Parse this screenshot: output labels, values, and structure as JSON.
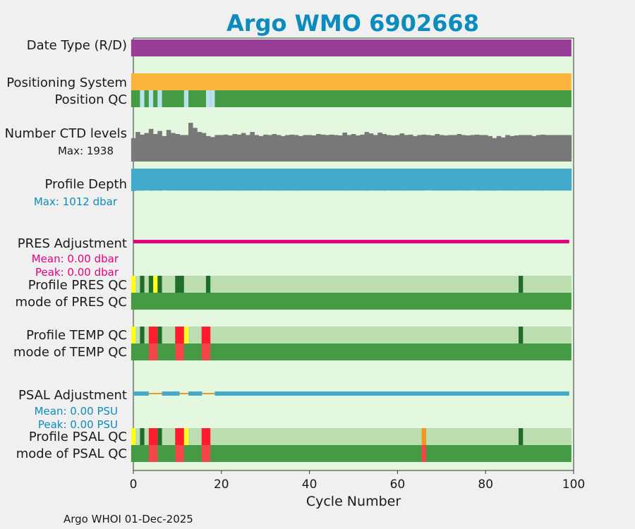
{
  "chart_data": {
    "type": "table",
    "title": "Argo WMO 6902668",
    "xlabel": "Cycle Number",
    "xlim": [
      0,
      100
    ],
    "xticks": [
      0,
      20,
      40,
      60,
      80,
      100
    ],
    "credit": "Argo WHOI 01-Dec-2025",
    "colors": {
      "background": "#e3f8df",
      "title": "#0b8cbd",
      "date_type": "#993d99",
      "positioning": "#fbb33d",
      "qc_good": "#449b44",
      "qc_interp": "#b9e2ef",
      "qc_probably_good": "#1f6d2a",
      "qc_bad": "#ff1a2c",
      "qc_questionable": "#ffff1a",
      "qc_changed": "#f4951f",
      "qc_light": "#bcddaf",
      "mode_bad": "#f4454b",
      "ctd": "#787878",
      "depth": "#44aacc",
      "pres_adj": "#e6007e",
      "psal_adj": "#44aacc",
      "psal_adj_gap": "#f4951f"
    },
    "rows": {
      "date_type": {
        "label": "Date Type (R/D)"
      },
      "positioning": {
        "label": "Positioning System"
      },
      "position_qc": {
        "label": "Position QC",
        "interp_cycles": [
          2,
          4,
          6,
          12,
          17,
          18
        ]
      },
      "ctd": {
        "label": "Number CTD levels",
        "max_text": "Max: 1938",
        "max": 1938,
        "values": [
          1150,
          1450,
          1320,
          1400,
          1600,
          1350,
          1500,
          1250,
          1550,
          1400,
          1350,
          1300,
          1300,
          1900,
          1650,
          1450,
          1400,
          1250,
          1200,
          1300,
          1300,
          1320,
          1280,
          1350,
          1320,
          1400,
          1300,
          1450,
          1300,
          1250,
          1320,
          1300,
          1350,
          1300,
          1250,
          1300,
          1320,
          1300,
          1250,
          1300,
          1300,
          1280,
          1350,
          1320,
          1300,
          1320,
          1300,
          1280,
          1420,
          1300,
          1350,
          1280,
          1320,
          1450,
          1380,
          1300,
          1420,
          1350,
          1300,
          1280,
          1300,
          1380,
          1300,
          1320,
          1250,
          1300,
          1320,
          1300,
          1280,
          1350,
          1300,
          1280,
          1300,
          1300,
          1350,
          1300,
          1280,
          1300,
          1320,
          1300,
          1300,
          1250,
          1150,
          1250,
          1180,
          1300,
          1250,
          1280,
          1300,
          1300,
          1300,
          1250,
          1300,
          1320,
          1300,
          1300,
          1300,
          1300,
          1300,
          1300
        ]
      },
      "profile_depth": {
        "label": "Profile Depth",
        "max_text": "Max: 1012 dbar",
        "max": 1012,
        "values": [
          980,
          960,
          960,
          950,
          960,
          955,
          960,
          950,
          955,
          960,
          958,
          955,
          957,
          960,
          955,
          958,
          960,
          957,
          958,
          960,
          958,
          960,
          957,
          958,
          960,
          958,
          955,
          957,
          958,
          960,
          955,
          957,
          958,
          960,
          958,
          955,
          957,
          960,
          958,
          955,
          957,
          958,
          955,
          960,
          957,
          958,
          955,
          957,
          958,
          960,
          955,
          957,
          958,
          960,
          955,
          957,
          958,
          960,
          955,
          957,
          958,
          960,
          958,
          955,
          957,
          958,
          955,
          950,
          957,
          958,
          955,
          957,
          960,
          958,
          955,
          957,
          958,
          950,
          958,
          960,
          957,
          958,
          960,
          955,
          957,
          958,
          955,
          960,
          957,
          958,
          955,
          957,
          958,
          960,
          955,
          957,
          958,
          960,
          955,
          957
        ]
      },
      "pres_adjustment": {
        "label": "PRES Adjustment",
        "mean_text": "Mean: 0.00 dbar",
        "peak_text": "Peak: 0.00 dbar"
      },
      "profile_pres_qc": {
        "label": "Profile PRES QC",
        "yellow_cycles": [
          0,
          5
        ],
        "dark_cycles": [
          2,
          4,
          6,
          10,
          11,
          17,
          88
        ]
      },
      "mode_pres_qc": {
        "label": "mode of PRES QC"
      },
      "profile_temp_qc": {
        "label": "Profile TEMP QC",
        "yellow_cycles": [
          0,
          12
        ],
        "dark_cycles": [
          2,
          6,
          88
        ],
        "red_cycles": [
          4,
          5,
          10,
          11,
          16,
          17
        ]
      },
      "mode_temp_qc": {
        "label": "mode of TEMP QC",
        "bad_cycles": [
          4,
          5,
          10,
          11,
          16,
          17
        ]
      },
      "psal_adjustment": {
        "label": "PSAL Adjustment",
        "mean_text": "Mean: 0.00 PSU",
        "peak_text": "Peak: 0.00 PSU",
        "gaps": [
          [
            3.5,
            6.5
          ],
          [
            10.5,
            12.5
          ],
          [
            15.5,
            18.5
          ]
        ]
      },
      "profile_psal_qc": {
        "label": "Profile PSAL QC",
        "yellow_cycles": [
          0,
          12
        ],
        "dark_cycles": [
          2,
          6,
          88
        ],
        "red_cycles": [
          4,
          5,
          10,
          11,
          16,
          17
        ],
        "orange_cycles": [
          66
        ]
      },
      "mode_psal_qc": {
        "label": "mode of PSAL QC",
        "bad_cycles": [
          4,
          5,
          10,
          11,
          16,
          17,
          66
        ]
      }
    }
  }
}
